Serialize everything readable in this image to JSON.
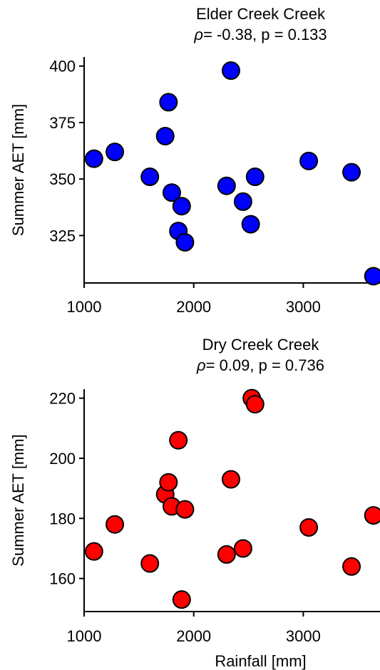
{
  "chart_data": [
    {
      "type": "scatter",
      "title_line1": "Elder Creek Creek",
      "title_rho": "ρ",
      "title_stats": "= -0.38, p = 0.133",
      "xlabel": "",
      "ylabel": "Summer AET [mm]",
      "xlim": [
        1000,
        3700
      ],
      "ylim": [
        304,
        404
      ],
      "xticks": [
        1000,
        2000,
        3000
      ],
      "yticks": [
        325,
        350,
        375,
        400
      ],
      "color": "#0000ff",
      "x": [
        1090,
        1280,
        1600,
        1740,
        1770,
        1800,
        1860,
        1890,
        1920,
        2300,
        2340,
        2450,
        2520,
        2560,
        3050,
        3440,
        3640
      ],
      "y": [
        359,
        362,
        351,
        369,
        384,
        344,
        327,
        338,
        322,
        347,
        398,
        340,
        330,
        351,
        358,
        353,
        307
      ]
    },
    {
      "type": "scatter",
      "title_line1": "Dry Creek Creek",
      "title_rho": "ρ",
      "title_stats": "= 0.09, p = 0.736",
      "xlabel": "Rainfall [mm]",
      "ylabel": "Summer AET [mm]",
      "xlim": [
        1000,
        3700
      ],
      "ylim": [
        149,
        223
      ],
      "xticks": [
        1000,
        2000,
        3000
      ],
      "yticks": [
        160,
        180,
        200,
        220
      ],
      "color": "#ff0000",
      "x": [
        1090,
        1280,
        1600,
        1740,
        1770,
        1800,
        1860,
        1890,
        1920,
        2300,
        2340,
        2450,
        2530,
        2560,
        3050,
        3440,
        3640
      ],
      "y": [
        169,
        178,
        165,
        188,
        192,
        184,
        206,
        153,
        183,
        168,
        193,
        170,
        220,
        218,
        177,
        164,
        181
      ]
    }
  ]
}
